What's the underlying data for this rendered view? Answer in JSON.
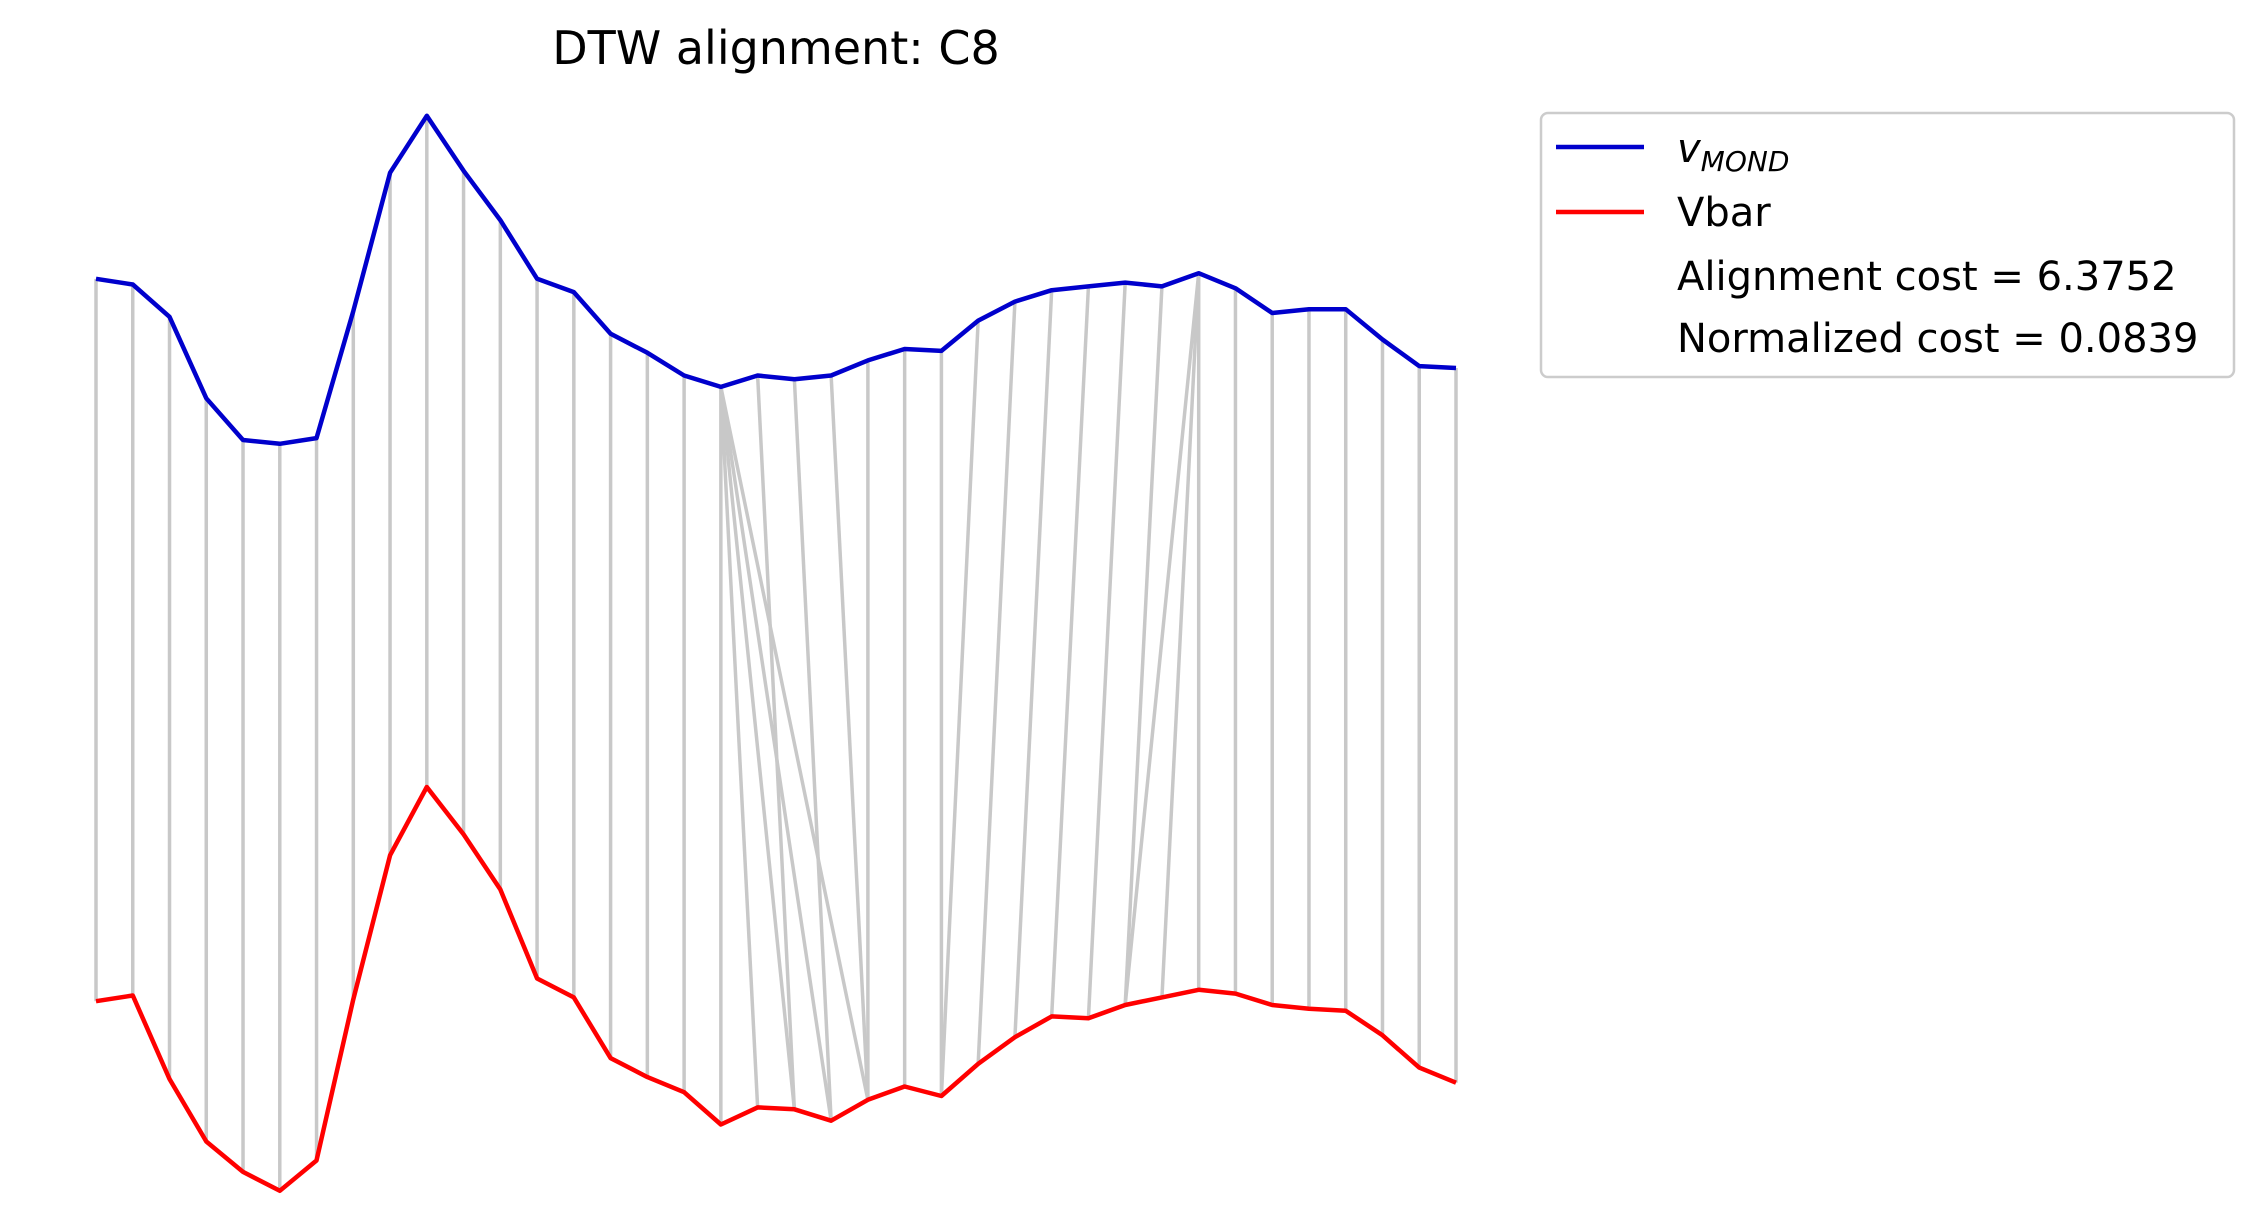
{
  "chart_data": {
    "type": "line",
    "title": "DTW alignment: C8",
    "axes_visible": false,
    "grid": false,
    "legend_placement": "outside upper right",
    "series": [
      {
        "name": "v_MOND",
        "color": "#0000cc",
        "values": [
          1.55,
          1.52,
          1.35,
          0.92,
          0.7,
          0.68,
          0.71,
          1.38,
          2.11,
          2.41,
          2.12,
          1.86,
          1.55,
          1.48,
          1.26,
          1.16,
          1.04,
          0.98,
          1.04,
          1.02,
          1.04,
          1.12,
          1.18,
          1.17,
          1.33,
          1.43,
          1.49,
          1.51,
          1.53,
          1.51,
          1.58,
          1.5,
          1.37,
          1.39,
          1.39,
          1.23,
          1.09,
          1.08
        ]
      },
      {
        "name": "Vbar",
        "color": "#ff0000",
        "values": [
          -2.26,
          -2.23,
          -2.67,
          -3.0,
          -3.16,
          -3.26,
          -3.1,
          -2.25,
          -1.49,
          -1.13,
          -1.38,
          -1.67,
          -2.14,
          -2.24,
          -2.56,
          -2.66,
          -2.74,
          -2.91,
          -2.82,
          -2.83,
          -2.89,
          -2.78,
          -2.71,
          -2.76,
          -2.59,
          -2.45,
          -2.34,
          -2.35,
          -2.28,
          -2.24,
          -2.2,
          -2.22,
          -2.28,
          -2.3,
          -2.31,
          -2.44,
          -2.61,
          -2.69
        ]
      }
    ],
    "alignment_pairs": [
      [
        0,
        0
      ],
      [
        1,
        1
      ],
      [
        2,
        2
      ],
      [
        3,
        3
      ],
      [
        4,
        4
      ],
      [
        5,
        5
      ],
      [
        6,
        6
      ],
      [
        7,
        7
      ],
      [
        8,
        8
      ],
      [
        9,
        9
      ],
      [
        10,
        10
      ],
      [
        11,
        11
      ],
      [
        12,
        12
      ],
      [
        13,
        13
      ],
      [
        14,
        14
      ],
      [
        15,
        15
      ],
      [
        16,
        16
      ],
      [
        17,
        17
      ],
      [
        17,
        18
      ],
      [
        17,
        19
      ],
      [
        17,
        20
      ],
      [
        17,
        21
      ],
      [
        18,
        19
      ],
      [
        19,
        20
      ],
      [
        20,
        21
      ],
      [
        21,
        21
      ],
      [
        22,
        22
      ],
      [
        23,
        23
      ],
      [
        24,
        23
      ],
      [
        25,
        24
      ],
      [
        26,
        25
      ],
      [
        27,
        26
      ],
      [
        28,
        27
      ],
      [
        29,
        28
      ],
      [
        30,
        28
      ],
      [
        30,
        29
      ],
      [
        30,
        30
      ],
      [
        31,
        31
      ],
      [
        32,
        32
      ],
      [
        33,
        33
      ],
      [
        34,
        34
      ],
      [
        35,
        35
      ],
      [
        36,
        36
      ],
      [
        37,
        37
      ]
    ],
    "annotations": [
      "Alignment cost = 6.3752",
      "Normalized cost = 0.0839"
    ],
    "legend_entries": [
      {
        "label": "v",
        "subscript": "MOND",
        "color": "#0000cc"
      },
      {
        "label": "Vbar",
        "color": "#ff0000"
      }
    ],
    "connector_color": "#c8c8c8"
  }
}
